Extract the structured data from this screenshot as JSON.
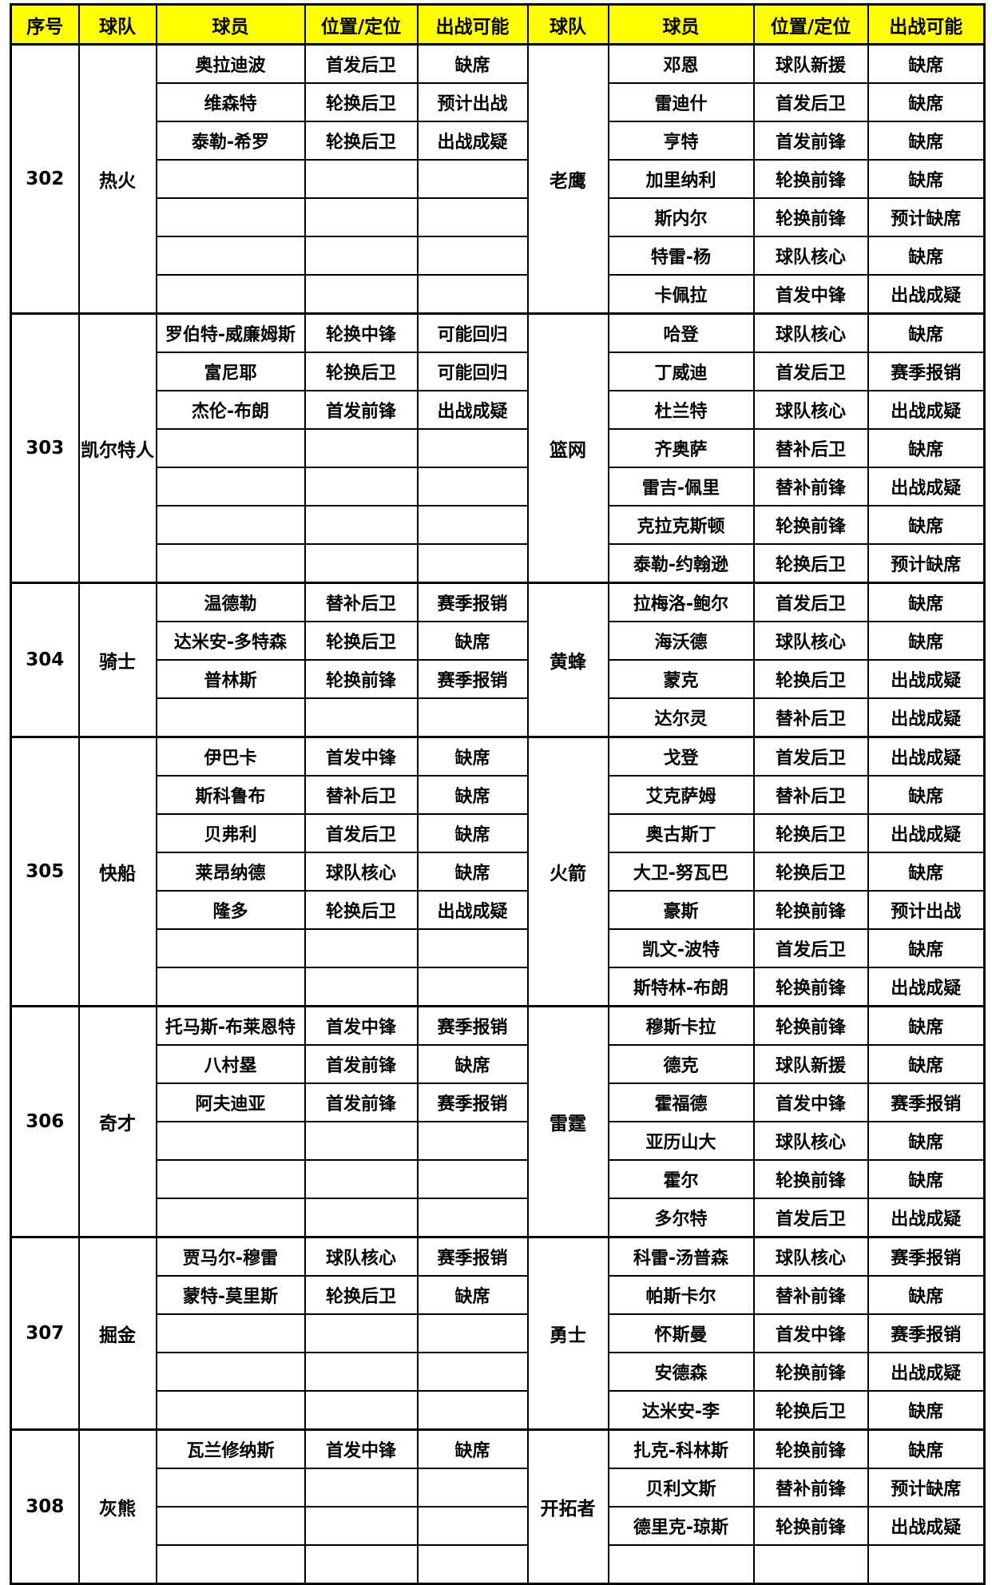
{
  "colors": {
    "header_bg": "#FFFF00",
    "red_text": "#FE0000",
    "black_text": "#000000",
    "gray_text": "#7F7F7F",
    "border": "#000000"
  },
  "header": {
    "columns": [
      "序号",
      "球队",
      "球员",
      "位置/定位",
      "出战可能",
      "球队",
      "球员",
      "位置/定位",
      "出战可能"
    ]
  },
  "groups": [
    {
      "id": "302",
      "left_team": "热火",
      "right_team": "老鹰",
      "rows": [
        {
          "left": [
            "奥拉迪波",
            "首发后卫",
            "缺席",
            "red"
          ],
          "right": [
            "邓恩",
            "球队新援",
            "缺席",
            "black"
          ]
        },
        {
          "left": [
            "维森特",
            "轮换后卫",
            "预计出战",
            "black"
          ],
          "right": [
            "雷迪什",
            "首发后卫",
            "缺席",
            "red"
          ]
        },
        {
          "left": [
            "泰勒-希罗",
            "轮换后卫",
            "出战成疑",
            "red"
          ],
          "right": [
            "亨特",
            "首发前锋",
            "缺席",
            "red"
          ]
        },
        {
          "left": null,
          "right": [
            "加里纳利",
            "轮换前锋",
            "缺席",
            "black"
          ]
        },
        {
          "left": null,
          "right": [
            "斯内尔",
            "轮换前锋",
            "预计缺席",
            "black"
          ]
        },
        {
          "left": null,
          "right": [
            "特雷-杨",
            "球队核心",
            "缺席",
            "red"
          ]
        },
        {
          "left": null,
          "right": [
            "卡佩拉",
            "首发中锋",
            "出战成疑",
            "black"
          ]
        }
      ]
    },
    {
      "id": "303",
      "left_team": "凯尔特人",
      "right_team": "篮网",
      "rows": [
        {
          "left": [
            "罗伯特-威廉姆斯",
            "轮换中锋",
            "可能回归",
            "black"
          ],
          "right": [
            "哈登",
            "球队核心",
            "缺席",
            "red"
          ]
        },
        {
          "left": [
            "富尼耶",
            "轮换后卫",
            "可能回归",
            "red"
          ],
          "right": [
            "丁威迪",
            "首发后卫",
            "赛季报销",
            "red"
          ]
        },
        {
          "left": [
            "杰伦-布朗",
            "首发前锋",
            "出战成疑",
            "red"
          ],
          "right": [
            "杜兰特",
            "球队核心",
            "出战成疑",
            "red"
          ]
        },
        {
          "left": null,
          "right": [
            "齐奥萨",
            "替补后卫",
            "缺席",
            "black"
          ]
        },
        {
          "left": null,
          "right": [
            "雷吉-佩里",
            "替补前锋",
            "出战成疑",
            "black"
          ]
        },
        {
          "left": null,
          "right": [
            "克拉克斯顿",
            "轮换前锋",
            "缺席",
            "black"
          ]
        },
        {
          "left": null,
          "right": [
            "泰勒-约翰逊",
            "轮换后卫",
            "预计缺席",
            "black"
          ]
        }
      ]
    },
    {
      "id": "304",
      "left_team": "骑士",
      "right_team": "黄蜂",
      "rows": [
        {
          "left": [
            "温德勒",
            "替补后卫",
            "赛季报销",
            "gray"
          ],
          "right": [
            "拉梅洛-鲍尔",
            "首发后卫",
            "缺席",
            "red"
          ]
        },
        {
          "left": [
            "达米安-多特森",
            "轮换后卫",
            "缺席",
            "black"
          ],
          "right": [
            "海沃德",
            "球队核心",
            "缺席",
            "red"
          ]
        },
        {
          "left": [
            "普林斯",
            "轮换前锋",
            "赛季报销",
            "black"
          ],
          "right": [
            "蒙克",
            "轮换后卫",
            "出战成疑",
            "red"
          ]
        },
        {
          "left": null,
          "right": [
            "达尔灵",
            "替补后卫",
            "出战成疑",
            "gray"
          ]
        }
      ]
    },
    {
      "id": "305",
      "left_team": "快船",
      "right_team": "火箭",
      "rows": [
        {
          "left": [
            "伊巴卡",
            "首发中锋",
            "缺席",
            "red"
          ],
          "right": [
            "戈登",
            "首发后卫",
            "出战成疑",
            "red"
          ]
        },
        {
          "left": [
            "斯科鲁布",
            "替补后卫",
            "缺席",
            "gray"
          ],
          "right": [
            "艾克萨姆",
            "替补后卫",
            "缺席",
            "gray"
          ]
        },
        {
          "left": [
            "贝弗利",
            "首发后卫",
            "缺席",
            "red"
          ],
          "right": [
            "奥古斯丁",
            "轮换后卫",
            "出战成疑",
            "red"
          ]
        },
        {
          "left": [
            "莱昂纳德",
            "球队核心",
            "缺席",
            "red"
          ],
          "right": [
            "大卫-努瓦巴",
            "轮换后卫",
            "缺席",
            "black"
          ]
        },
        {
          "left": [
            "隆多",
            "轮换后卫",
            "出战成疑",
            "black"
          ],
          "right": [
            "豪斯",
            "轮换前锋",
            "预计出战",
            "black"
          ]
        },
        {
          "left": null,
          "right": [
            "凯文-波特",
            "首发后卫",
            "缺席",
            "red"
          ]
        },
        {
          "left": null,
          "right": [
            "斯特林-布朗",
            "轮换前锋",
            "出战成疑",
            "black"
          ]
        }
      ]
    },
    {
      "id": "306",
      "left_team": "奇才",
      "right_team": "雷霆",
      "rows": [
        {
          "left": [
            "托马斯-布莱恩特",
            "首发中锋",
            "赛季报销",
            "red"
          ],
          "right": [
            "穆斯卡拉",
            "轮换前锋",
            "缺席",
            "black"
          ]
        },
        {
          "left": [
            "八村塁",
            "首发前锋",
            "缺席",
            "red"
          ],
          "right": [
            "德克",
            "球队新援",
            "缺席",
            "black"
          ]
        },
        {
          "left": [
            "阿夫迪亚",
            "首发前锋",
            "赛季报销",
            "red"
          ],
          "right": [
            "霍福德",
            "首发中锋",
            "赛季报销",
            "red"
          ]
        },
        {
          "left": null,
          "right": [
            "亚历山大",
            "球队核心",
            "缺席",
            "red"
          ]
        },
        {
          "left": null,
          "right": [
            "霍尔",
            "轮换前锋",
            "缺席",
            "black"
          ]
        },
        {
          "left": null,
          "right": [
            "多尔特",
            "首发后卫",
            "出战成疑",
            "red"
          ]
        }
      ]
    },
    {
      "id": "307",
      "left_team": "掘金",
      "right_team": "勇士",
      "rows": [
        {
          "left": [
            "贾马尔-穆雷",
            "球队核心",
            "赛季报销",
            "red"
          ],
          "right": [
            "科雷-汤普森",
            "球队核心",
            "赛季报销",
            "red"
          ]
        },
        {
          "left": [
            "蒙特-莫里斯",
            "轮换后卫",
            "缺席",
            "black"
          ],
          "right": [
            "帕斯卡尔",
            "替补前锋",
            "缺席",
            "gray"
          ]
        },
        {
          "left": null,
          "right": [
            "怀斯曼",
            "首发中锋",
            "赛季报销",
            "red"
          ]
        },
        {
          "left": null,
          "right": [
            "安德森",
            "轮换前锋",
            "出战成疑",
            "red"
          ]
        },
        {
          "left": null,
          "right": [
            "达米安-李",
            "轮换后卫",
            "缺席",
            "black"
          ]
        }
      ]
    },
    {
      "id": "308",
      "left_team": "灰熊",
      "right_team": "开拓者",
      "rows": [
        {
          "left": [
            "瓦兰修纳斯",
            "首发中锋",
            "缺席",
            "red"
          ],
          "right": [
            "扎克-科林斯",
            "轮换前锋",
            "缺席",
            "black"
          ]
        },
        {
          "left": null,
          "right": [
            "贝利文斯",
            "替补前锋",
            "预计缺席",
            "gray"
          ]
        },
        {
          "left": null,
          "right": [
            "德里克-琼斯",
            "轮换前锋",
            "出战成疑",
            "black"
          ]
        },
        {
          "left": null,
          "right": null
        }
      ]
    }
  ]
}
